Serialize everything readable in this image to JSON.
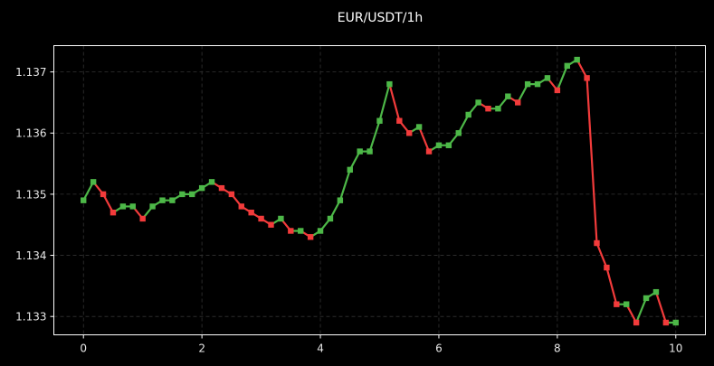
{
  "chart_data": {
    "type": "line",
    "title": "EUR/USDT/1h",
    "xlabel": "",
    "ylabel": "",
    "xlim": [
      -0.5,
      10.5
    ],
    "ylim": [
      1.1327,
      1.13743
    ],
    "x_ticks": [
      0,
      2,
      4,
      6,
      8,
      10
    ],
    "x_tick_labels": [
      "0",
      "2",
      "4",
      "6",
      "8",
      "10"
    ],
    "y_ticks": [
      1.133,
      1.134,
      1.135,
      1.136,
      1.137
    ],
    "y_tick_labels": [
      "1.133",
      "1.134",
      "1.135",
      "1.136",
      "1.137"
    ],
    "grid": true,
    "legend": "none",
    "colors": {
      "background": "#000000",
      "up": "#4db848",
      "down": "#f23b3b",
      "grid": "#333333",
      "text": "#e6e6e6"
    },
    "series": [
      {
        "x": [
          0,
          0.1667,
          0.3333,
          0.5,
          0.6667,
          0.8333,
          1,
          1.1667,
          1.3333,
          1.5,
          1.6667,
          1.8333,
          2,
          2.1667,
          2.3333,
          2.5,
          2.6667,
          2.8333,
          3,
          3.1667,
          3.3333,
          3.5,
          3.6667,
          3.8333,
          4,
          4.1667,
          4.3333,
          4.5,
          4.6667,
          4.8333,
          5,
          5.1667,
          5.3333,
          5.5,
          5.6667,
          5.8333,
          6,
          6.1667,
          6.3333,
          6.5,
          6.6667,
          6.8333,
          7,
          7.1667,
          7.3333,
          7.5,
          7.6667,
          7.8333,
          8,
          8.1667,
          8.3333,
          8.5,
          8.6667,
          8.8333,
          9,
          9.1667,
          9.3333,
          9.5,
          9.6667,
          9.8333,
          10
        ],
        "values": [
          1.1349,
          1.1352,
          1.135,
          1.1347,
          1.1348,
          1.1348,
          1.1346,
          1.1348,
          1.1349,
          1.1349,
          1.135,
          1.135,
          1.1351,
          1.1352,
          1.1351,
          1.135,
          1.1348,
          1.1347,
          1.1346,
          1.1345,
          1.1346,
          1.1344,
          1.1344,
          1.1343,
          1.1344,
          1.1346,
          1.1349,
          1.1354,
          1.1357,
          1.1357,
          1.1362,
          1.1368,
          1.1362,
          1.136,
          1.1361,
          1.1357,
          1.1358,
          1.1358,
          1.136,
          1.1363,
          1.1365,
          1.1364,
          1.1364,
          1.1366,
          1.1365,
          1.1368,
          1.1368,
          1.1369,
          1.1367,
          1.1371,
          1.1372,
          1.1369,
          1.1342,
          1.1338,
          1.1332,
          1.1332,
          1.1329,
          1.1333,
          1.1334,
          1.1329,
          1.1329
        ]
      }
    ]
  }
}
